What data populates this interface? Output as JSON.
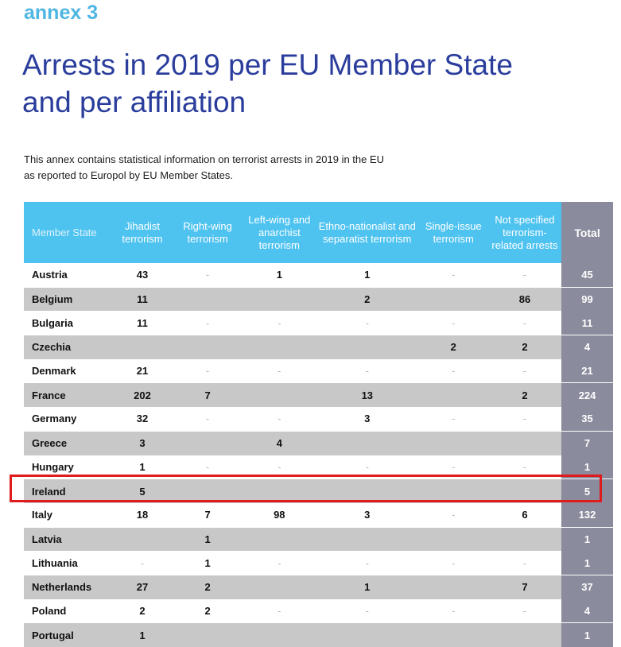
{
  "header": {
    "annex": "annex 3",
    "title_line1": "Arrests in 2019 per EU Member State",
    "title_line2": "and per affiliation",
    "intro_line1": "This annex contains statistical information on terrorist arrests in 2019 in the EU",
    "intro_line2": "as reported to Europol by EU Member States."
  },
  "table": {
    "columns": [
      "Member State",
      "Jihadist terrorism",
      "Right-wing terrorism",
      "Left-wing and anarchist terrorism",
      "Ethno-nationalist and separatist terrorism",
      "Single-issue terrorism",
      "Not specified terrorism-related arrests",
      "Total"
    ],
    "rows": [
      [
        "Austria",
        "43",
        "-",
        "1",
        "1",
        "-",
        "-",
        "45"
      ],
      [
        "Belgium",
        "11",
        "",
        "",
        "2",
        "",
        "86",
        "99"
      ],
      [
        "Bulgaria",
        "11",
        "-",
        "-",
        "-",
        "-",
        "-",
        "11"
      ],
      [
        "Czechia",
        "",
        "",
        "",
        "",
        "2",
        "2",
        "4"
      ],
      [
        "Denmark",
        "21",
        "-",
        "-",
        "-",
        "-",
        "-",
        "21"
      ],
      [
        "France",
        "202",
        "7",
        "",
        "13",
        "",
        "2",
        "224"
      ],
      [
        "Germany",
        "32",
        "-",
        "-",
        "3",
        "-",
        "-",
        "35"
      ],
      [
        "Greece",
        "3",
        "",
        "4",
        "",
        "",
        "",
        "7"
      ],
      [
        "Hungary",
        "1",
        "-",
        "-",
        "-",
        "-",
        "-",
        "1"
      ],
      [
        "Ireland",
        "5",
        "",
        "",
        "",
        "",
        "",
        "5"
      ],
      [
        "Italy",
        "18",
        "7",
        "98",
        "3",
        "-",
        "6",
        "132"
      ],
      [
        "Latvia",
        "",
        "1",
        "",
        "",
        "",
        "",
        "1"
      ],
      [
        "Lithuania",
        "-",
        "1",
        "-",
        "-",
        "-",
        "-",
        "1"
      ],
      [
        "Netherlands",
        "27",
        "2",
        "",
        "1",
        "",
        "7",
        "37"
      ],
      [
        "Poland",
        "2",
        "2",
        "-",
        "-",
        "-",
        "-",
        "4"
      ],
      [
        "Portugal",
        "1",
        "",
        "",
        "",
        "",
        "",
        "1"
      ]
    ],
    "highlighted_row": "Ireland"
  },
  "colors": {
    "header_blue": "#4fc3f0",
    "total_gray": "#8a8b9c",
    "title_blue": "#2a3d9c",
    "annex_blue": "#4fb6e3",
    "highlight_red": "#e01b1b"
  }
}
